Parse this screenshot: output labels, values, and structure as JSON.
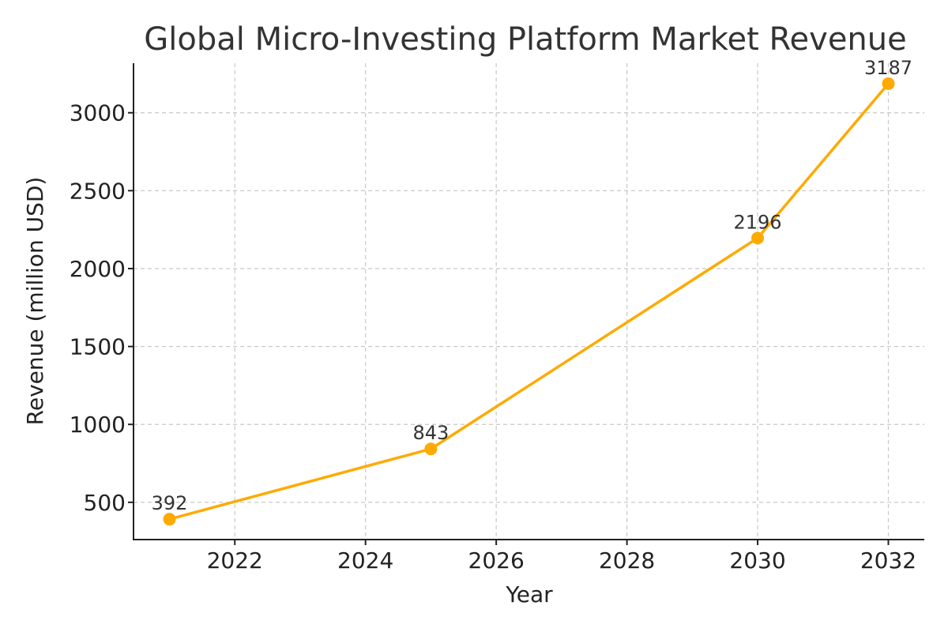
{
  "chart_data": {
    "type": "line",
    "title": "Global Micro-Investing Platform Market Revenue",
    "xlabel": "Year",
    "ylabel": "Revenue (million USD)",
    "xlim": [
      2020.45,
      2032.55
    ],
    "ylim": [
      261,
      3318
    ],
    "x_ticks": [
      2022,
      2024,
      2026,
      2028,
      2030,
      2032
    ],
    "y_ticks": [
      500,
      1000,
      1500,
      2000,
      2500,
      3000
    ],
    "grid": true,
    "series": [
      {
        "name": "Revenue",
        "color": "#FFAA00",
        "points": [
          {
            "x": 2021,
            "y": 392,
            "label": "392"
          },
          {
            "x": 2025,
            "y": 843,
            "label": "843"
          },
          {
            "x": 2030,
            "y": 2196,
            "label": "2196"
          },
          {
            "x": 2032,
            "y": 3187,
            "label": "3187"
          }
        ]
      }
    ]
  }
}
